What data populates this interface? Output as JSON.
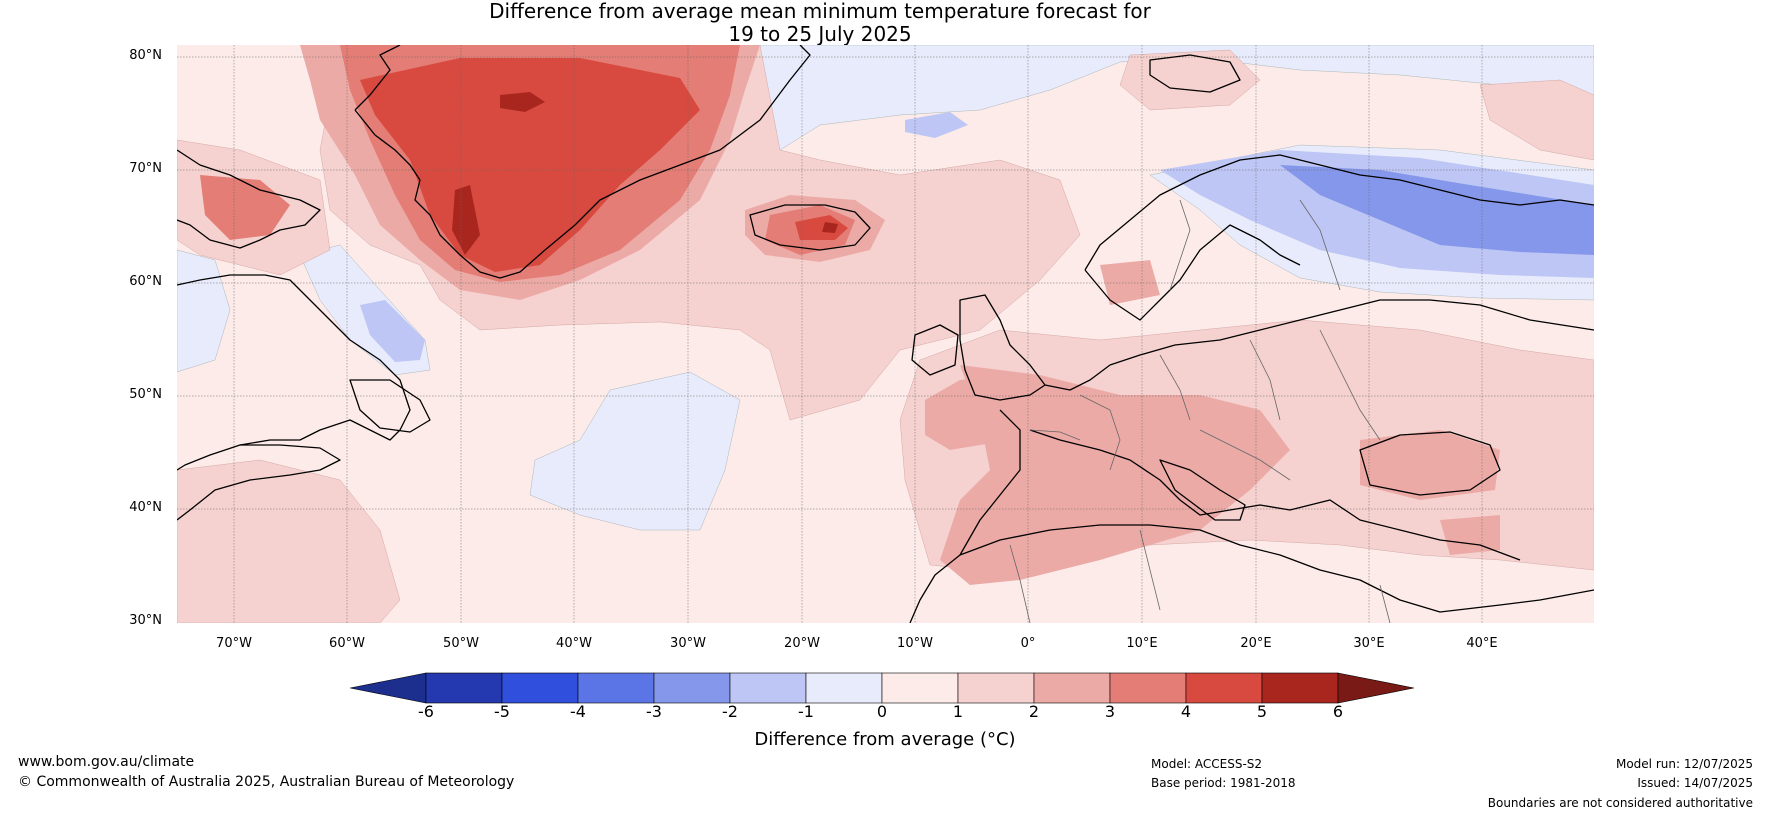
{
  "title": {
    "line1": "Difference from average mean minimum temperature forecast for",
    "line2": "19 to 25 July 2025"
  },
  "axes": {
    "lat_ticks": [
      "80°N",
      "70°N",
      "60°N",
      "50°N",
      "40°N",
      "30°N"
    ],
    "lon_ticks": [
      "70°W",
      "60°W",
      "50°W",
      "40°W",
      "30°W",
      "20°W",
      "10°W",
      "0°",
      "10°E",
      "20°E",
      "30°E",
      "40°E"
    ]
  },
  "colorbar": {
    "label": "Difference from average (°C)",
    "ticks": [
      "-6",
      "-5",
      "-4",
      "-3",
      "-2",
      "-1",
      "0",
      "1",
      "2",
      "3",
      "4",
      "5",
      "6"
    ],
    "colors": [
      "#1c2f8f",
      "#2438b0",
      "#2f4fdc",
      "#5c75e6",
      "#8597ea",
      "#bdc6f4",
      "#e8ebfb",
      "#fcebe9",
      "#f5d2cf",
      "#ecaaa6",
      "#e37d75",
      "#d84a3f",
      "#a9261f",
      "#7a1a16"
    ]
  },
  "footer": {
    "website": "www.bom.gov.au/climate",
    "copyright": "© Commonwealth of Australia 2025, Australian Bureau of Meteorology",
    "model": "Model: ACCESS-S2",
    "base_period": "Base period: 1981-2018",
    "model_run": "Model run: 12/07/2025",
    "issued": "Issued: 14/07/2025",
    "boundaries": "Boundaries are not considered authoritative"
  }
}
